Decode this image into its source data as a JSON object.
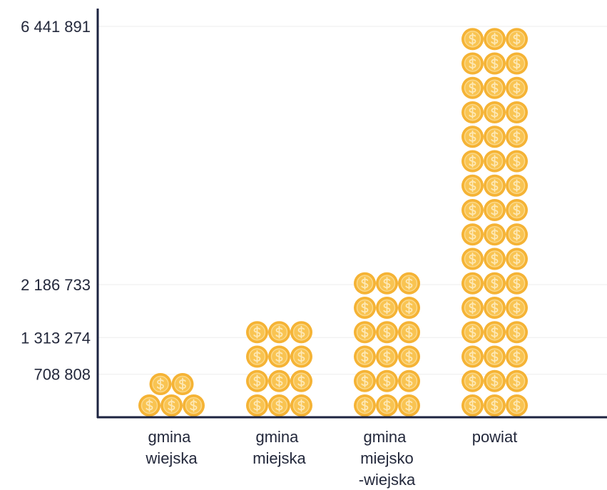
{
  "chart_data": {
    "type": "pictograph",
    "categories": [
      "gmina wiejska",
      "gmina miejska",
      "gmina miejsko-wiejska",
      "powiat"
    ],
    "values": [
      708808,
      1313274,
      2186733,
      6441891
    ],
    "color": "#f5b335",
    "ylim": [
      0,
      6441891
    ],
    "yticks": [
      {
        "value": 708808,
        "label": "708 808"
      },
      {
        "value": 1313274,
        "label": "1 313 274"
      },
      {
        "value": 2186733,
        "label": "2 186 733"
      },
      {
        "value": 6441891,
        "label": "6 441 891"
      }
    ],
    "grid": true
  }
}
